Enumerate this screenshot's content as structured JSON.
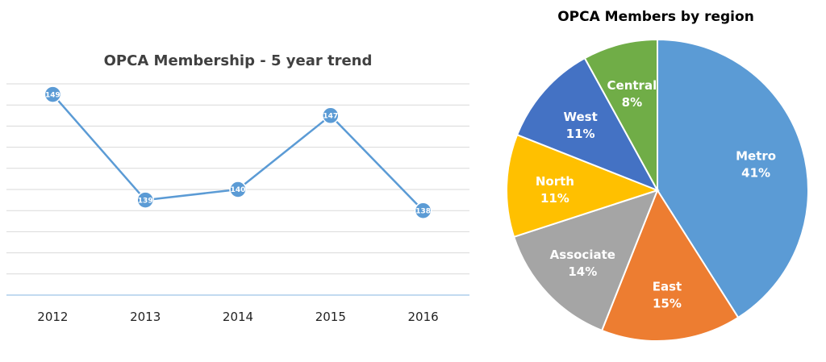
{
  "colors": {
    "line": "#5b9bd5",
    "grid": "#d9d9d9",
    "axis": "#9dc3e6",
    "title": "#404040"
  },
  "chart_data": [
    {
      "type": "line",
      "title": "OPCA Membership - 5 year trend",
      "categories": [
        "2012",
        "2013",
        "2014",
        "2015",
        "2016"
      ],
      "series": [
        {
          "values": [
            149,
            139,
            140,
            147,
            138
          ],
          "labels": [
            "149",
            "139",
            "140",
            "147",
            "138"
          ]
        }
      ],
      "ylim": [
        130,
        150
      ],
      "grid": true,
      "y_tick_labels": false
    },
    {
      "type": "pie",
      "title": "OPCA Members by region",
      "slices": [
        {
          "label": "Metro",
          "pct_text": "41%",
          "value": 41,
          "color": "#5b9bd5"
        },
        {
          "label": "East",
          "pct_text": "15%",
          "value": 15,
          "color": "#ed7d31"
        },
        {
          "label": "Associate",
          "pct_text": "14%",
          "value": 14,
          "color": "#a5a5a5"
        },
        {
          "label": "North",
          "pct_text": "11%",
          "value": 11,
          "color": "#ffc000"
        },
        {
          "label": "West",
          "pct_text": "11%",
          "value": 11,
          "color": "#4472c4"
        },
        {
          "label": "Central",
          "pct_text": "8%",
          "value": 8,
          "color": "#70ad47"
        }
      ]
    }
  ]
}
